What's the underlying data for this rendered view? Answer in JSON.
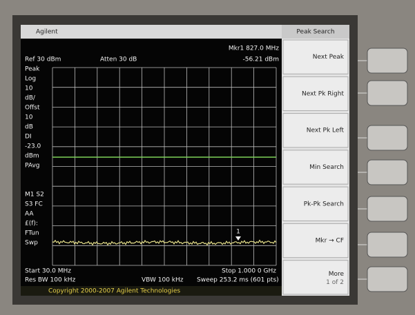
{
  "header": {
    "brand": "Agilent",
    "ref": "Ref 30 dBm",
    "atten": "Atten 30 dB",
    "marker_freq": "Mkr1 827.0 MHz",
    "marker_level": "-56.21 dBm"
  },
  "sidebar": [
    "Peak",
    "Log",
    "10",
    "dB/",
    "Offst",
    "10",
    "dB",
    "DI",
    "-23.0",
    "dBm",
    "PAvg",
    "",
    "",
    "M1 S2",
    "S3 FC",
    "AA",
    "£(f):",
    "FTun",
    "Swp"
  ],
  "footer": {
    "start": "Start 30.0 MHz",
    "stop": "Stop 1.000 0 GHz",
    "rbw": "Res BW 100 kHz",
    "vbw": "VBW 100 kHz",
    "sweep": "Sweep 253.2 ms (601 pts)"
  },
  "copyright": "Copyright 2000-2007 Agilent Technologies",
  "marker_label": "1",
  "menu": {
    "title": "Peak Search",
    "items": [
      "Next Peak",
      "Next Pk Right",
      "Next Pk Left",
      "Min Search",
      "Pk-Pk Search",
      "Mkr → CF"
    ],
    "more": "More",
    "page": "1 of 2"
  }
}
